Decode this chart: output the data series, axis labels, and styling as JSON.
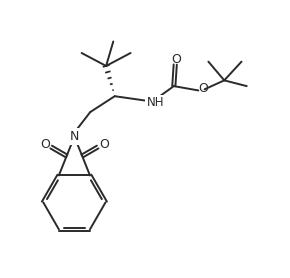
{
  "bg_color": "#ffffff",
  "line_color": "#2a2a2a",
  "line_width": 1.4,
  "font_size": 8.5,
  "figsize": [
    2.9,
    2.78
  ],
  "dpi": 100,
  "xlim": [
    0,
    10
  ],
  "ylim": [
    0,
    9.6
  ]
}
